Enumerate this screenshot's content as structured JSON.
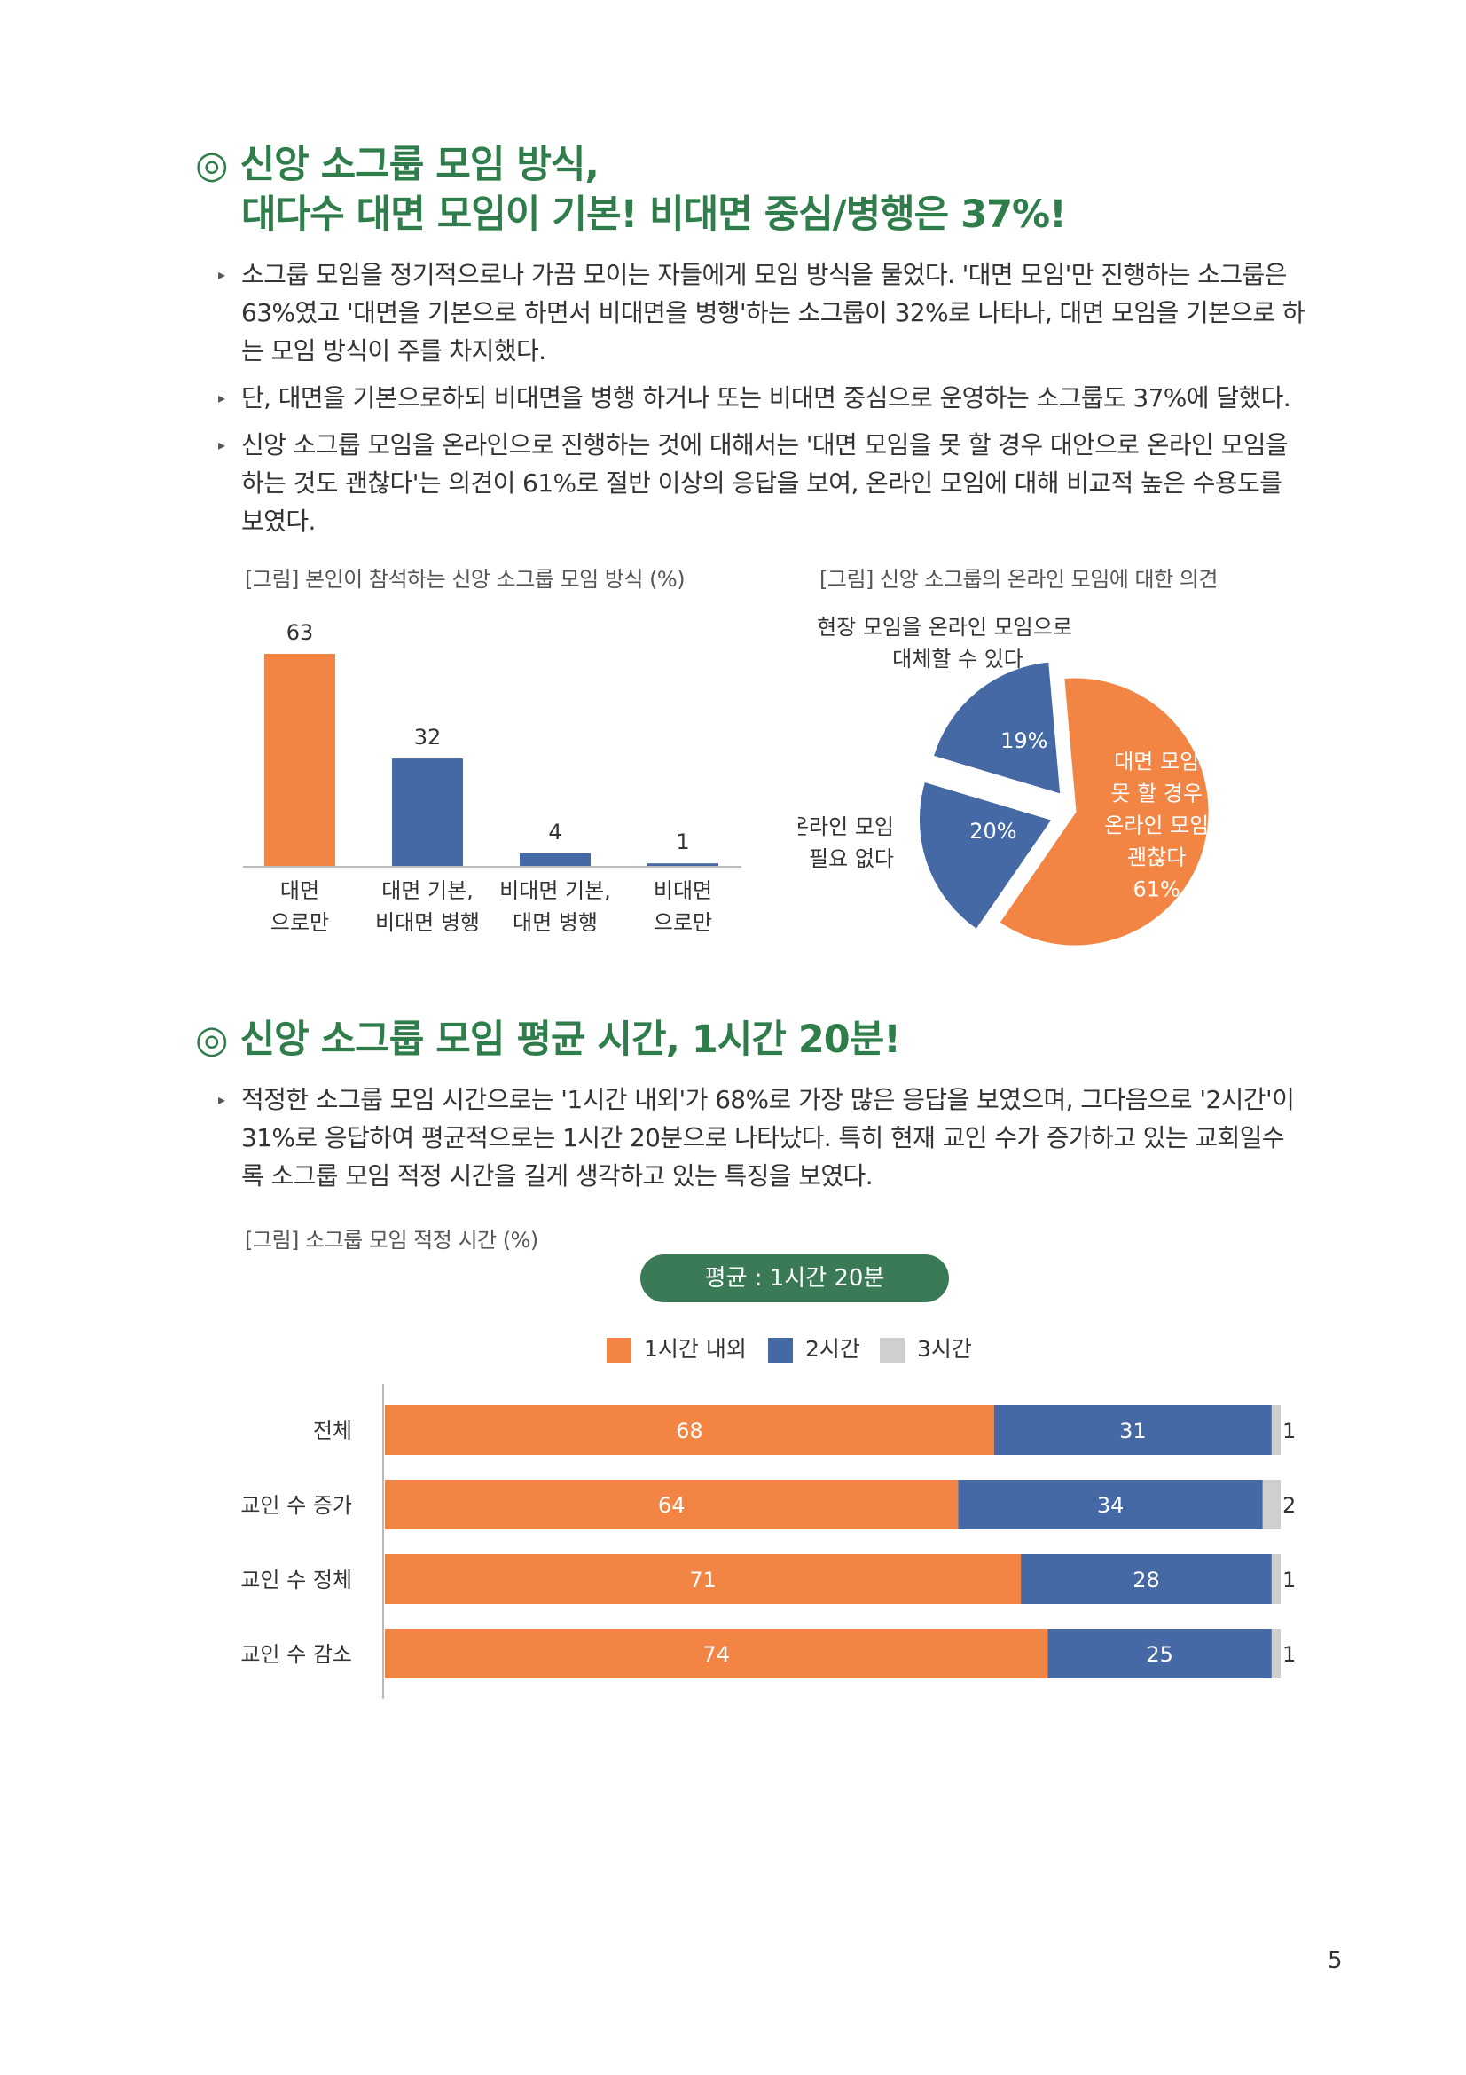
{
  "section1": {
    "marker": "◎",
    "heading_line1": "신앙 소그룹 모임 방식,",
    "heading_line2": "대다수 대면 모임이 기본! 비대면 중심/병행은 37%!",
    "bullet_marker": "▸",
    "bullets": [
      {
        "lines": [
          "소그룹 모임을 정기적으로나 가끔 모이는 자들에게 모임 방식을 물었다. '대면 모임'만 진행하는 소그룹은",
          "63%였고 '대면을 기본으로 하면서 비대면을 병행'하는 소그룹이 32%로 나타나, 대면 모임을 기본으로 하",
          "는 모임 방식이 주를 차지했다."
        ]
      },
      {
        "lines": [
          "단, 대면을 기본으로하되 비대면을 병행 하거나 또는 비대면 중심으로 운영하는 소그룹도 37%에 달했다."
        ]
      },
      {
        "lines": [
          "신앙 소그룹 모임을 온라인으로 진행하는 것에 대해서는 '대면 모임을 못 할 경우 대안으로  온라인 모임을",
          "하는 것도 괜찮다'는 의견이 61%로 절반 이상의 응답을 보여, 온라인 모임에 대해 비교적 높은 수용도를",
          "보였다."
        ]
      }
    ]
  },
  "section2": {
    "marker": "◎",
    "heading": "신앙 소그룹 모임 평균 시간, 1시간 20분!",
    "bullet_marker": "▸",
    "bullets": [
      {
        "lines": [
          "적정한 소그룹 모임 시간으로는 '1시간 내외'가 68%로 가장 많은 응답을 보였으며, 그다음으로 '2시간'이",
          "31%로 응답하여 평균적으로는 1시간 20분으로 나타났다. 특히 현재 교인 수가 증가하고 있는 교회일수",
          "록 소그룹 모임 적정 시간을 길게 생각하고 있는 특징을 보였다."
        ]
      }
    ]
  },
  "colors": {
    "orange": "#f28444",
    "blue": "#4569a5",
    "gray": "#cfcfcf",
    "green": "#2f7d4a",
    "pill": "#3a7a56"
  },
  "page_number": "5",
  "chart_data": [
    {
      "type": "bar",
      "title": "[그림] 본인이 참석하는 신앙 소그룹 모임 방식 (%)",
      "categories": [
        [
          "대면",
          "으로만"
        ],
        [
          "대면 기본,",
          "비대면 병행"
        ],
        [
          "비대면 기본,",
          "대면 병행"
        ],
        [
          "비대면",
          "으로만"
        ]
      ],
      "values": [
        63,
        32,
        4,
        1
      ],
      "bar_colors": [
        "#f28444",
        "#4569a5",
        "#4569a5",
        "#4569a5"
      ],
      "ylim": [
        0,
        63
      ],
      "grid": false,
      "xlabel": "",
      "ylabel": ""
    },
    {
      "type": "pie",
      "title": "[그림] 신앙 소그룹의 온라인 모임에 대한 의견",
      "slices": [
        {
          "label_lines": [
            "대면 모임",
            "못 할 경우",
            "온라인 모임",
            "괜찮다"
          ],
          "value": 61,
          "value_label": "61%",
          "color": "#f28444",
          "exploded": false
        },
        {
          "label_lines": [
            "현장 모임을 온라인 모임으로",
            "대체할 수 있다"
          ],
          "value": 19,
          "value_label": "19%",
          "color": "#4569a5",
          "exploded": true
        },
        {
          "label_lines": [
            "온라인 모임",
            "필요 없다"
          ],
          "value": 20,
          "value_label": "20%",
          "color": "#4569a5",
          "exploded": true
        }
      ]
    },
    {
      "type": "bar",
      "orientation": "horizontal",
      "stacked": true,
      "title": "[그림] 소그룹 모임 적정 시간 (%)",
      "annotation": "평균 : 1시간 20분",
      "legend_position": "top-center",
      "categories": [
        "전체",
        "교인 수 증가",
        "교인 수 정체",
        "교인 수 감소"
      ],
      "series": [
        {
          "name": "1시간 내외",
          "color": "#f28444",
          "values": [
            68,
            64,
            71,
            74
          ]
        },
        {
          "name": "2시간",
          "color": "#4569a5",
          "values": [
            31,
            34,
            28,
            25
          ]
        },
        {
          "name": "3시간",
          "color": "#cfcfcf",
          "values": [
            1,
            2,
            1,
            1
          ]
        }
      ],
      "xlim": [
        0,
        100
      ]
    }
  ]
}
